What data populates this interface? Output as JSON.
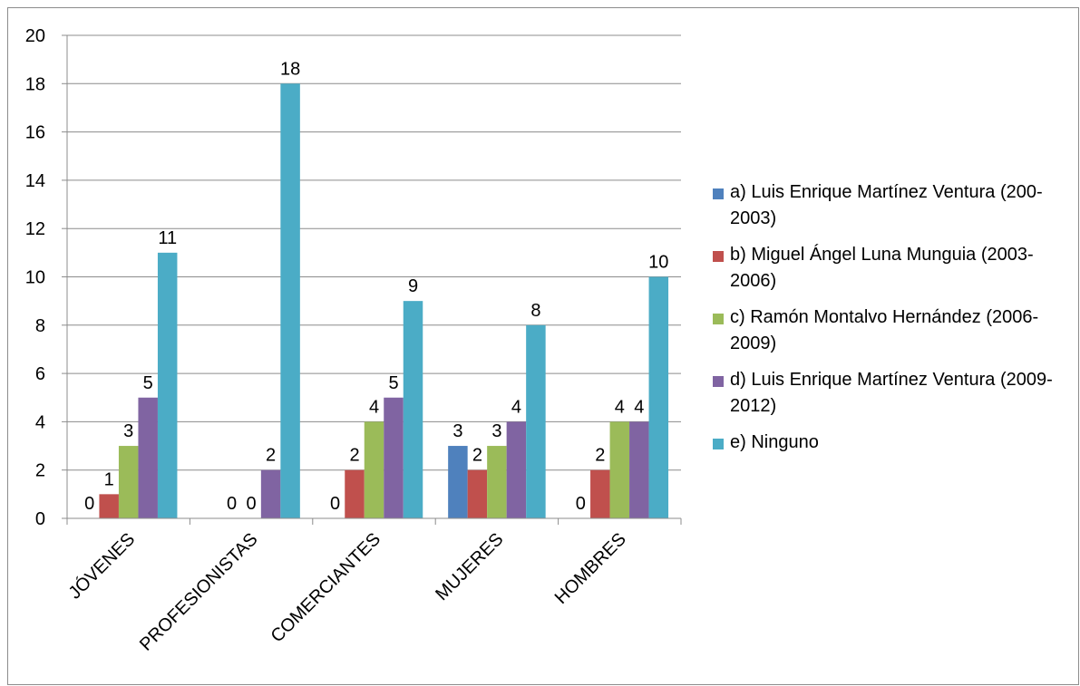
{
  "chart_data": {
    "type": "bar",
    "categories": [
      "JÓVENES",
      "PROFESIONISTAS",
      "COMERCIANTES",
      "MUJERES",
      "HOMBRES"
    ],
    "series": [
      {
        "name": "a) Luis Enrique Martínez Ventura (200-2003)",
        "values": [
          0,
          0,
          0,
          3,
          0
        ],
        "color": "#4f81bd"
      },
      {
        "name": "b) Miguel Ángel Luna Munguia (2003-2006)",
        "values": [
          1,
          0,
          2,
          2,
          2
        ],
        "color": "#c0504d"
      },
      {
        "name": "c) Ramón Montalvo Hernández (2006-2009)",
        "values": [
          3,
          0,
          4,
          3,
          4
        ],
        "color": "#9bbb59"
      },
      {
        "name": "d) Luis Enrique Martínez Ventura (2009-2012)",
        "values": [
          5,
          2,
          5,
          4,
          4
        ],
        "color": "#8064a2"
      },
      {
        "name": "e) Ninguno",
        "values": [
          11,
          18,
          9,
          8,
          10
        ],
        "color": "#4bacc6"
      }
    ],
    "data_labels": [
      [
        "0",
        "",
        "0",
        "3",
        "0"
      ],
      [
        "1",
        "0",
        "2",
        "2",
        "2"
      ],
      [
        "3",
        "0",
        "4",
        "3",
        "4"
      ],
      [
        "5",
        "2",
        "5",
        "4",
        "4"
      ],
      [
        "11",
        "18",
        "9",
        "8",
        "10"
      ]
    ],
    "y_ticks": [
      "0",
      "2",
      "4",
      "6",
      "8",
      "10",
      "12",
      "14",
      "16",
      "18",
      "20"
    ],
    "ylim": [
      0,
      20
    ],
    "title": "",
    "xlabel": "",
    "ylabel": "",
    "grid": true,
    "legend_position": "right",
    "gridline_color": "#8c8c8c",
    "axis_color": "#8c8c8c"
  }
}
